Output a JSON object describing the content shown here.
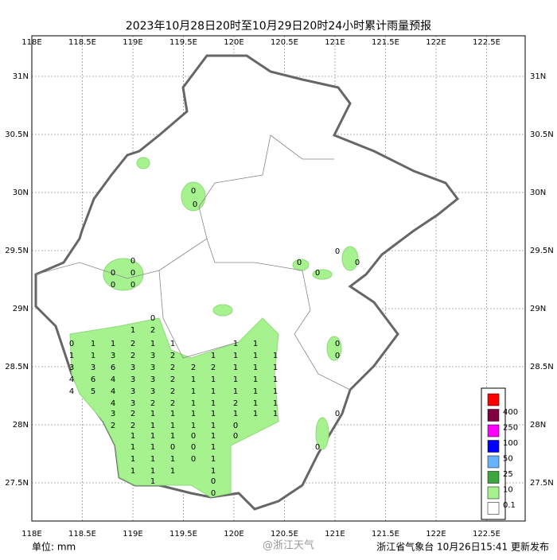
{
  "title": "2023年10月28日20时至10月29日20时24小时累计雨量预报",
  "xticks": [
    {
      "value": 118,
      "label": "118E"
    },
    {
      "value": 118.5,
      "label": "118.5E"
    },
    {
      "value": 119,
      "label": "119E"
    },
    {
      "value": 119.5,
      "label": "119.5E"
    },
    {
      "value": 120,
      "label": "120E"
    },
    {
      "value": 120.5,
      "label": "120.5E"
    },
    {
      "value": 121,
      "label": "121E"
    },
    {
      "value": 121.5,
      "label": "121.5E"
    },
    {
      "value": 122,
      "label": "122E"
    },
    {
      "value": 122.5,
      "label": "122.5E"
    }
  ],
  "yticks": [
    {
      "value": 31,
      "label": "31N"
    },
    {
      "value": 30.5,
      "label": "30.5N"
    },
    {
      "value": 30,
      "label": "30N"
    },
    {
      "value": 29.5,
      "label": "29.5N"
    },
    {
      "value": 29,
      "label": "29N"
    },
    {
      "value": 28.5,
      "label": "28.5N"
    },
    {
      "value": 28,
      "label": "28N"
    },
    {
      "value": 27.5,
      "label": "27.5N"
    }
  ],
  "legend": [
    {
      "label": "400",
      "color": "#ff0000"
    },
    {
      "label": "250",
      "color": "#800040"
    },
    {
      "label": "100",
      "color": "#ff00ff"
    },
    {
      "label": "50",
      "color": "#0000ff"
    },
    {
      "label": "25",
      "color": "#66b3ff"
    },
    {
      "label": "10",
      "color": "#3da63d"
    },
    {
      "label": "0.1",
      "color": "#a6f28f"
    },
    {
      "label": "",
      "color": "#ffffff"
    }
  ],
  "station_grid": [
    [
      null,
      null,
      null,
      null,
      0,
      null,
      null,
      null,
      null,
      null,
      null
    ],
    [
      null,
      null,
      null,
      1,
      2,
      null,
      null,
      null,
      null,
      null,
      null
    ],
    [
      0,
      1,
      1,
      2,
      1,
      1,
      null,
      null,
      1,
      1,
      null
    ],
    [
      1,
      1,
      3,
      2,
      3,
      2,
      null,
      1,
      1,
      1,
      1
    ],
    [
      3,
      3,
      6,
      3,
      3,
      2,
      2,
      2,
      1,
      1,
      1
    ],
    [
      4,
      6,
      4,
      3,
      3,
      2,
      1,
      1,
      1,
      1,
      1
    ],
    [
      4,
      5,
      4,
      3,
      3,
      2,
      1,
      1,
      1,
      1,
      1
    ],
    [
      null,
      null,
      4,
      3,
      2,
      2,
      1,
      1,
      2,
      1,
      1
    ],
    [
      null,
      null,
      3,
      2,
      1,
      1,
      1,
      1,
      1,
      1,
      1
    ],
    [
      null,
      null,
      2,
      2,
      1,
      1,
      1,
      1,
      0,
      null,
      null
    ],
    [
      null,
      null,
      null,
      1,
      1,
      1,
      0,
      1,
      0,
      null,
      null
    ],
    [
      null,
      null,
      null,
      1,
      1,
      0,
      0,
      1,
      null,
      null,
      null
    ],
    [
      null,
      null,
      null,
      1,
      1,
      1,
      0,
      1,
      null,
      null,
      null
    ],
    [
      null,
      null,
      null,
      1,
      1,
      1,
      null,
      1,
      null,
      null,
      null
    ],
    [
      null,
      null,
      null,
      null,
      1,
      null,
      null,
      0,
      null,
      null,
      null
    ],
    [
      null,
      null,
      null,
      null,
      null,
      null,
      null,
      0,
      null,
      null,
      null
    ]
  ],
  "scattered_labels": [
    0,
    0,
    0,
    0,
    0,
    0,
    0,
    0,
    0,
    0,
    0,
    0,
    0,
    0,
    0
  ],
  "unit": "单位: mm",
  "issuer": "浙江省气象台 10月26日15:41 更新发布",
  "watermark": "@浙江天气"
}
